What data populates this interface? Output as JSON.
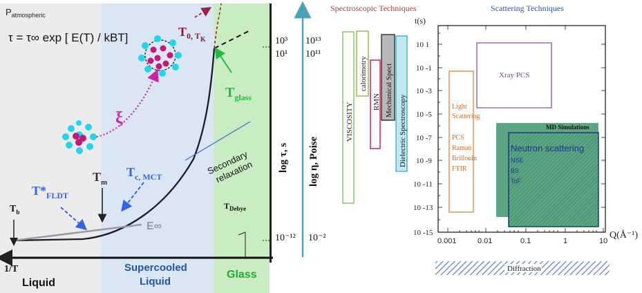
{
  "left_panel": {
    "pressure_label": "P",
    "pressure_sub": "atmospheric",
    "equation": "τ = τ∞ exp [ E(T) / kBT]",
    "label_t0tk_main": "T",
    "label_t0tk": "0, T",
    "label_tk_sub": "K",
    "label_tglass_main": "T",
    "label_tglass_sub": "glass",
    "label_xi": "ξ",
    "label_tfldt_main": "T*",
    "label_tfldt_sub": "FLDT",
    "label_tm_main": "T",
    "label_tm_sub": "m",
    "label_tc_main": "T",
    "label_tc_sub": "c, MCT",
    "label_tb_main": "T",
    "label_tb_sub": "b",
    "label_einf": "E∞",
    "label_secondary_line1": "Secondary",
    "label_secondary_line2": "relaxation",
    "label_tdebye_main": "T",
    "label_tdebye_sub": "Debye",
    "x_axis_label": "1/T",
    "region_liquid": "Liquid",
    "region_supercooled_line1": "Supercooled",
    "region_supercooled_line2": "Liquid",
    "region_glass": "Glass",
    "axis_log_tau": "log τ, s",
    "axis_log_eta": "log η, Poise",
    "tick_tau_1": "10³",
    "tick_tau_2": "10¹",
    "tick_tau_3": "10⁻¹²",
    "tick_eta_1": "10¹³",
    "tick_eta_2": "10¹¹",
    "tick_eta_3": "10⁻²",
    "colors": {
      "liquid_bg": "#ececec",
      "supercooled_bg": "#dae6f3",
      "glass_bg": "#c9ecc3",
      "arrow_teal": "#4aa3b8",
      "dotted_magenta": "#cc22aa",
      "dashed_blue": "#3366dd",
      "tglass_green": "#22bb44",
      "t0_red": "#a02040",
      "region_blue": "#2255aa",
      "region_green": "#22aa33"
    }
  },
  "right_panel": {
    "title_spectroscopic": "Spectroscopic Techniques",
    "title_scattering": "Scattering Techniques",
    "bar_viscosity": "VISCOSITY",
    "bar_calorimetry": "calorimetry",
    "bar_rmn": "RMN",
    "bar_mechanical": "Mechanical Spect",
    "bar_dielectric": "Dielectric Spectroscopy",
    "y_axis_label": "t(s)",
    "x_axis_label": "Q(Å⁻¹)",
    "y_ticks": [
      "10 1",
      "10 -1",
      "10 -3",
      "10 -5",
      "10 -7",
      "10 -9",
      "10 -11",
      "10 -13",
      "10 -15"
    ],
    "x_ticks": [
      "0.001",
      "0.01",
      "0.1",
      "1",
      "10"
    ],
    "box_xray": "Xray PCS",
    "box_light_line1": "Light",
    "box_light_line2": "Scattering",
    "box_light_items": [
      "PCS",
      "Raman",
      "Brillouin",
      "FTIR"
    ],
    "box_md": "MD Simulations",
    "box_neutron": "Neutron scattering",
    "box_neutron_items": [
      "NSE",
      "BS",
      "ToF"
    ],
    "diffraction": "Diffraction",
    "colors": {
      "title_red": "#c0392b",
      "title_blue": "#2e50c8",
      "viscosity": "#8ac66a",
      "calorimetry": "#9ab84a",
      "rmn": "#e0266a",
      "mechanical_fill": "#b8b8b8",
      "dielectric_fill": "#bfe8f0",
      "dielectric_border": "#3aa9c6",
      "xray_border": "#8855bb",
      "xray_text": "#7744aa",
      "light_border": "#e08040",
      "light_text": "#d07030",
      "md_fill": "#5aa782",
      "neutron_border": "#1a3a7a",
      "neutron_text": "#1a3a8a",
      "diffraction_hatch": "#5a7fd6"
    }
  }
}
